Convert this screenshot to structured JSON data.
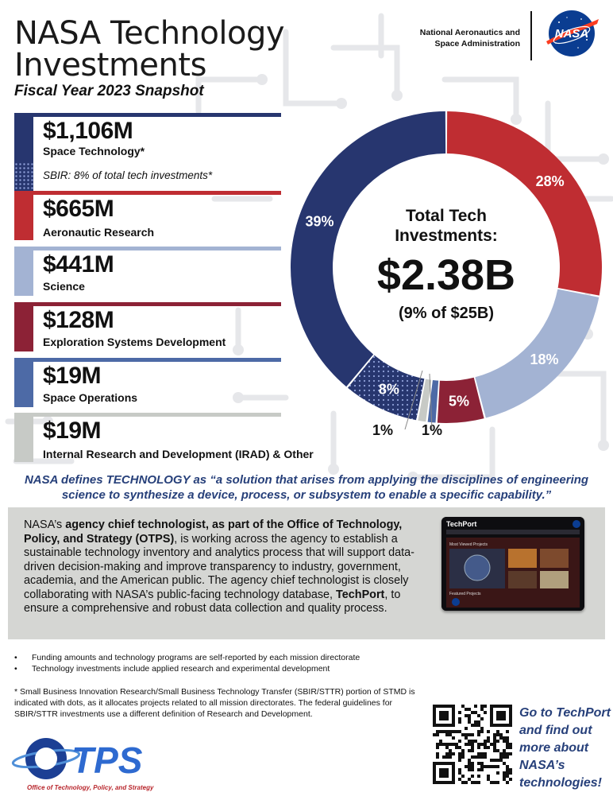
{
  "header": {
    "title_line1": "NASA Technology",
    "title_line2": "Investments",
    "subtitle": "Fiscal Year 2023 Snapshot",
    "agency_line1": "National Aeronautics and",
    "agency_line2": "Space Administration",
    "logo_text": "NASA"
  },
  "categories": [
    {
      "amount": "$1,106M",
      "label": "Space Technology*",
      "color": "#27366f"
    },
    {
      "amount": "$665M",
      "label": "Aeronautic Research",
      "color": "#bf2d32"
    },
    {
      "amount": "$441M",
      "label": "Science",
      "color": "#a3b3d3"
    },
    {
      "amount": "$128M",
      "label": "Exploration Systems Development",
      "color": "#8c2236"
    },
    {
      "amount": "$19M",
      "label": "Space Operations",
      "color": "#4d6aa6"
    },
    {
      "amount": "$19M",
      "label": "Internal Research and Development (IRAD) & Other",
      "color": "#c7cac6"
    }
  ],
  "sbir_note": "SBIR: 8% of total tech investments*",
  "chart_data": {
    "type": "pie",
    "donut": true,
    "center_text": {
      "line1": "Total Tech",
      "line2": "Investments:",
      "total": "$2.38B",
      "note": "(9% of $25B)"
    },
    "slices": [
      {
        "label": "28%",
        "value": 28,
        "color": "#bf2d32",
        "name": "Aeronautic Research"
      },
      {
        "label": "18%",
        "value": 18,
        "color": "#a3b3d3",
        "name": "Science"
      },
      {
        "label": "5%",
        "value": 5,
        "color": "#8c2236",
        "name": "Exploration Systems Development"
      },
      {
        "label": "1%",
        "value": 1,
        "color": "#4d6aa6",
        "name": "Space Operations"
      },
      {
        "label": "1%",
        "value": 1,
        "color": "#c7cac6",
        "name": "Internal Research and Development (IRAD) & Other"
      },
      {
        "label": "8%",
        "value": 8,
        "color": "#27366f",
        "name": "SBIR",
        "dotted": true
      },
      {
        "label": "39%",
        "value": 39,
        "color": "#27366f",
        "name": "Space Technology"
      }
    ]
  },
  "definition": {
    "line1": "NASA defines TECHNOLOGY as “a solution that arises from applying the disciplines of engineering",
    "line2": "science to synthesize a device, process, or subsystem to enable a specific capability.”"
  },
  "panel": {
    "t1": "NASA’s ",
    "b1": "agency chief technologist, as part of the Office of Technology, Policy, and Strategy (OTPS)",
    "t2": ", is working across the agency to establish a sustainable technology inventory and analytics process that will support data-driven decision-making and improve transparency to industry, government, academia, and the American public. The agency chief technologist is closely collaborating with NASA’s public-facing technology database, ",
    "b2": "TechPort",
    "t3": ", to ensure a comprehensive and robust data collection and quality process.",
    "screenshot": {
      "brand": "TechPort",
      "heading": "Most Viewed Projects",
      "featured": "Featured Projects"
    }
  },
  "notes": [
    "Funding amounts and technology programs are self-reported by each mission directorate",
    "Technology investments include applied research and experimental development"
  ],
  "footnote": "* Small Business Innovation Research/Small Business Technology Transfer (SBIR/STTR) portion of STMD is indicated with dots, as it allocates projects related to all mission directorates. The federal guidelines for SBIR/STTR investments use a different definition of Research and Development.",
  "footer": {
    "logo_text": "TPS",
    "logo_tagline": "Office of Technology, Policy, and Strategy",
    "cta": "Go to TechPort and find out more about NASA’s technologies!"
  }
}
